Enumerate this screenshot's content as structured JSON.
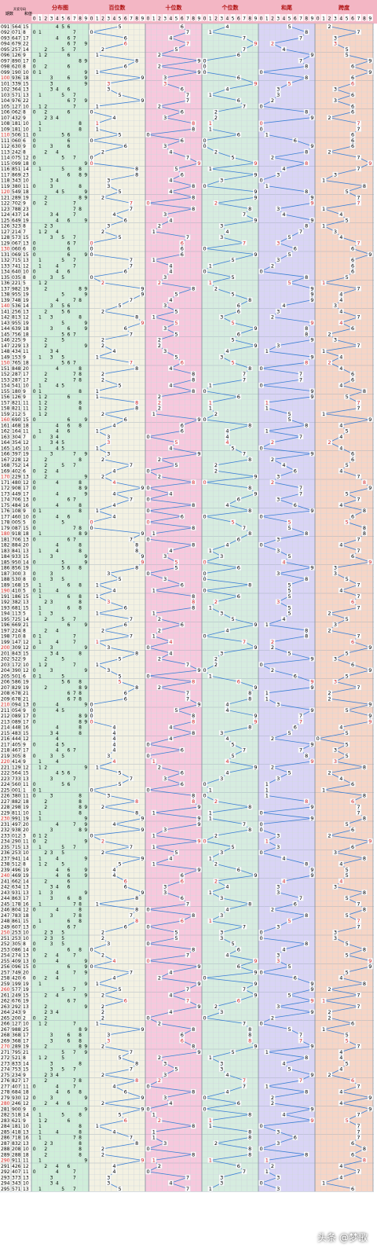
{
  "chart_data": {
    "type": "table",
    "columns": {
      "period": "期数",
      "draw": "开奖号码",
      "sum": "和值",
      "distribution": "分布图",
      "hundreds": "百位数",
      "tens": "十位数",
      "units": "个位数",
      "sum_tail": "和尾",
      "span": "跨度"
    },
    "digit_header": [
      "0",
      "1",
      "2",
      "3",
      "4",
      "5",
      "6",
      "7",
      "8",
      "9"
    ],
    "span_header": [
      "0",
      "1",
      "2",
      "3",
      "4",
      "5",
      "6",
      "7",
      "8",
      "9"
    ],
    "colors": {
      "distribution": "#cfeed9",
      "hundreds": "#f3f1e2",
      "tens": "#f7c8dd",
      "units": "#d6ecdf",
      "sum_tail": "#d9d4f5",
      "span": "#f6d5c6",
      "header": "#f3b6c4",
      "line": "#3a7fd5",
      "accent": "#d62020"
    },
    "rows": [
      {
        "period": "091",
        "h": 5,
        "t": 6,
        "u": 4
      },
      {
        "period": "092",
        "h": 0,
        "t": 7,
        "u": 1
      },
      {
        "period": "093",
        "h": 6,
        "t": 4,
        "u": 7
      },
      {
        "period": "094",
        "h": 6,
        "t": 7,
        "u": 9
      },
      {
        "period": "095",
        "h": 2,
        "t": 5,
        "u": 7
      },
      {
        "period": "096",
        "h": 1,
        "t": 2,
        "u": 6
      },
      {
        "period": "097",
        "h": 8,
        "t": 9,
        "u": 0
      },
      {
        "period": "098",
        "h": 6,
        "t": 2,
        "u": 0
      },
      {
        "period": "099",
        "h": 1,
        "t": 9,
        "u": 0
      },
      {
        "period": "100",
        "h": 9,
        "t": 3,
        "u": 6
      },
      {
        "period": "101",
        "h": 3,
        "t": 3,
        "u": 9
      },
      {
        "period": "102",
        "h": 3,
        "t": 6,
        "u": 4
      },
      {
        "period": "103",
        "h": 5,
        "t": 7,
        "u": 1
      },
      {
        "period": "104",
        "h": 9,
        "t": 7,
        "u": 6
      },
      {
        "period": "105",
        "h": 1,
        "t": 2,
        "u": 7
      },
      {
        "period": "106",
        "h": 0,
        "t": 6,
        "u": 2
      },
      {
        "period": "107",
        "h": 4,
        "t": 3,
        "u": 2
      },
      {
        "period": "108",
        "h": 1,
        "t": 8,
        "u": 1
      },
      {
        "period": "109",
        "h": 1,
        "t": 8,
        "u": 1
      },
      {
        "period": "110",
        "h": 5,
        "t": 0,
        "u": 6
      },
      {
        "period": "111",
        "h": 0,
        "t": 6,
        "u": 0
      },
      {
        "period": "112",
        "h": 6,
        "t": 3,
        "u": 0
      },
      {
        "period": "113",
        "h": 2,
        "t": 4,
        "u": 2
      },
      {
        "period": "114",
        "h": 0,
        "t": 7,
        "u": 5
      },
      {
        "period": "115",
        "h": 0,
        "t": 9,
        "u": 9
      },
      {
        "period": "116",
        "h": 8,
        "t": 5,
        "u": 1
      },
      {
        "period": "117",
        "h": 8,
        "t": 6,
        "u": 9
      },
      {
        "period": "118",
        "h": 3,
        "t": 4,
        "u": 3
      },
      {
        "period": "119",
        "h": 3,
        "t": 8,
        "u": 0
      },
      {
        "period": "120",
        "h": 5,
        "t": 4,
        "u": 9
      },
      {
        "period": "121",
        "h": 2,
        "t": 8,
        "u": 9
      },
      {
        "period": "122",
        "h": 7,
        "t": 0,
        "u": 2
      },
      {
        "period": "123",
        "h": 7,
        "t": 8,
        "u": 8
      },
      {
        "period": "124",
        "h": 4,
        "t": 3,
        "u": 7
      },
      {
        "period": "125",
        "h": 6,
        "t": 4,
        "u": 9
      },
      {
        "period": "126",
        "h": 3,
        "t": 2,
        "u": 3
      },
      {
        "period": "127",
        "h": 2,
        "t": 1,
        "u": 4
      },
      {
        "period": "128",
        "h": 5,
        "t": 7,
        "u": 3
      },
      {
        "period": "129",
        "h": 0,
        "t": 6,
        "u": 7
      },
      {
        "period": "130",
        "h": 0,
        "t": 6,
        "u": 0
      },
      {
        "period": "131",
        "h": 0,
        "t": 6,
        "u": 9
      },
      {
        "period": "132",
        "h": 7,
        "t": 1,
        "u": 5
      },
      {
        "period": "133",
        "h": 7,
        "t": 4,
        "u": 1
      },
      {
        "period": "134",
        "h": 6,
        "t": 4,
        "u": 0
      },
      {
        "period": "135",
        "h": 0,
        "t": 3,
        "u": 5
      },
      {
        "period": "136",
        "h": 2,
        "t": 2,
        "u": 1
      },
      {
        "period": "137",
        "h": 9,
        "t": 8,
        "u": 2
      },
      {
        "period": "138",
        "h": 9,
        "t": 5,
        "u": 5
      },
      {
        "period": "139",
        "h": 7,
        "t": 4,
        "u": 8
      },
      {
        "period": "140",
        "h": 5,
        "t": 3,
        "u": 6
      },
      {
        "period": "141",
        "h": 2,
        "t": 5,
        "u": 6
      },
      {
        "period": "142",
        "h": 8,
        "t": 1,
        "u": 3
      },
      {
        "period": "143",
        "h": 9,
        "t": 5,
        "u": 5
      },
      {
        "period": "144",
        "h": 6,
        "t": 3,
        "u": 9
      },
      {
        "period": "145",
        "h": 7,
        "t": 5,
        "u": 6
      },
      {
        "period": "146",
        "h": 2,
        "t": 2,
        "u": 5
      },
      {
        "period": "147",
        "h": 2,
        "t": 2,
        "u": 9
      },
      {
        "period": "148",
        "h": 4,
        "t": 3,
        "u": 4
      },
      {
        "period": "149",
        "h": 1,
        "t": 5,
        "u": 3
      },
      {
        "period": "150",
        "h": 7,
        "t": 6,
        "u": 5
      },
      {
        "period": "151",
        "h": 8,
        "t": 4,
        "u": 8
      },
      {
        "period": "152",
        "h": 2,
        "t": 8,
        "u": 7
      },
      {
        "period": "153",
        "h": 2,
        "t": 8,
        "u": 7
      },
      {
        "period": "154",
        "h": 5,
        "t": 4,
        "u": 1
      },
      {
        "period": "155",
        "h": 1,
        "t": 8,
        "u": 0
      },
      {
        "period": "156",
        "h": 1,
        "t": 2,
        "u": 6
      },
      {
        "period": "157",
        "h": 8,
        "t": 2,
        "u": 1
      },
      {
        "period": "158",
        "h": 8,
        "t": 2,
        "u": 1
      },
      {
        "period": "159",
        "h": 2,
        "t": 1,
        "u": 2
      },
      {
        "period": "160",
        "h": 6,
        "t": 9,
        "u": 0
      },
      {
        "period": "161",
        "h": 4,
        "t": 6,
        "u": 8
      },
      {
        "period": "162",
        "h": 1,
        "t": 6,
        "u": 4
      },
      {
        "period": "163",
        "h": 3,
        "t": 0,
        "u": 4
      },
      {
        "period": "164",
        "h": 3,
        "t": 5,
        "u": 4
      },
      {
        "period": "165",
        "h": 1,
        "t": 4,
        "u": 5
      },
      {
        "period": "166",
        "h": 3,
        "t": 9,
        "u": 7
      },
      {
        "period": "167",
        "h": 2,
        "t": 2,
        "u": 8
      },
      {
        "period": "168",
        "h": 7,
        "t": 5,
        "u": 2
      },
      {
        "period": "169",
        "h": 4,
        "t": 0,
        "u": 2
      },
      {
        "period": "170",
        "h": 2,
        "t": 2,
        "u": 9
      },
      {
        "period": "171",
        "h": 4,
        "t": 8,
        "u": 0
      },
      {
        "period": "172",
        "h": 9,
        "t": 0,
        "u": 8
      },
      {
        "period": "173",
        "h": 4,
        "t": 4,
        "u": 9
      },
      {
        "period": "174",
        "h": 7,
        "t": 0,
        "u": 6
      },
      {
        "period": "175",
        "h": 4,
        "t": 8,
        "u": 4
      },
      {
        "period": "176",
        "h": 1,
        "t": 0,
        "u": 8
      },
      {
        "period": "177",
        "h": 4,
        "t": 6,
        "u": 0
      },
      {
        "period": "178",
        "h": 0,
        "t": 0,
        "u": 5
      },
      {
        "period": "179",
        "h": 0,
        "t": 8,
        "u": 7
      },
      {
        "period": "180",
        "h": 9,
        "t": 1,
        "u": 8
      },
      {
        "period": "181",
        "h": 7,
        "t": 0,
        "u": 6
      },
      {
        "period": "182",
        "h": 8,
        "t": 8,
        "u": 4
      },
      {
        "period": "183",
        "h": 8,
        "t": 4,
        "u": 1
      },
      {
        "period": "184",
        "h": 9,
        "t": 3,
        "u": 3
      },
      {
        "period": "185",
        "h": 9,
        "t": 5,
        "u": 0
      },
      {
        "period": "186",
        "h": 8,
        "t": 5,
        "u": 6
      },
      {
        "period": "187",
        "h": 3,
        "t": 0,
        "u": 0
      },
      {
        "period": "188",
        "h": 5,
        "t": 3,
        "u": 0
      },
      {
        "period": "189",
        "h": 1,
        "t": 6,
        "u": 8
      },
      {
        "period": "190",
        "h": 4,
        "t": 1,
        "u": 0
      },
      {
        "period": "191",
        "h": 1,
        "t": 8,
        "u": 6
      },
      {
        "period": "192",
        "h": 3,
        "t": 8,
        "u": 2
      },
      {
        "period": "193",
        "h": 6,
        "t": 8,
        "u": 1
      },
      {
        "period": "194",
        "h": 1,
        "t": 1,
        "u": 3
      },
      {
        "period": "195",
        "h": 7,
        "t": 2,
        "u": 5
      },
      {
        "period": "196",
        "h": 6,
        "t": 6,
        "u": 9
      },
      {
        "period": "197",
        "h": 2,
        "t": 2,
        "u": 4
      },
      {
        "period": "198",
        "h": 7,
        "t": 1,
        "u": 0
      },
      {
        "period": "199",
        "h": 1,
        "t": 4,
        "u": 7
      },
      {
        "period": "200",
        "h": 3,
        "t": 0,
        "u": 9
      },
      {
        "period": "201",
        "h": 8,
        "t": 4,
        "u": 3
      },
      {
        "period": "202",
        "h": 5,
        "t": 2,
        "u": 2
      },
      {
        "period": "203",
        "h": 1,
        "t": 7,
        "u": 2
      },
      {
        "period": "204",
        "h": 3,
        "t": 9,
        "u": 0
      },
      {
        "period": "205",
        "h": 5,
        "t": 0,
        "u": 1
      },
      {
        "period": "206",
        "h": 5,
        "t": 8,
        "u": 6
      },
      {
        "period": "207",
        "h": 8,
        "t": 2,
        "u": 9
      },
      {
        "period": "208",
        "h": 6,
        "t": 7,
        "u": 8
      },
      {
        "period": "209",
        "h": 6,
        "t": 7,
        "u": 8
      },
      {
        "period": "210",
        "h": 0,
        "t": 9,
        "u": 4
      },
      {
        "period": "211",
        "h": 0,
        "t": 5,
        "u": 4
      },
      {
        "period": "212",
        "h": 0,
        "t": 8,
        "u": 9
      },
      {
        "period": "213",
        "h": 0,
        "t": 8,
        "u": 9
      },
      {
        "period": "214",
        "h": 4,
        "t": 4,
        "u": 8
      },
      {
        "period": "215",
        "h": 4,
        "t": 8,
        "u": 3
      },
      {
        "period": "216",
        "h": 4,
        "t": 4,
        "u": 4
      },
      {
        "period": "217",
        "h": 4,
        "t": 0,
        "u": 5
      },
      {
        "period": "218",
        "h": 4,
        "t": 6,
        "u": 7
      },
      {
        "period": "219",
        "h": 3,
        "t": 0,
        "u": 5
      },
      {
        "period": "220",
        "h": 4,
        "t": 1,
        "u": 4
      },
      {
        "period": "221",
        "h": 1,
        "t": 2,
        "u": 9
      },
      {
        "period": "222",
        "h": 5,
        "t": 6,
        "u": 4
      },
      {
        "period": "223",
        "h": 7,
        "t": 3,
        "u": 3
      },
      {
        "period": "224",
        "h": 5,
        "t": 6,
        "u": 0
      },
      {
        "period": "225",
        "h": 0,
        "t": 0,
        "u": 1
      },
      {
        "period": "226",
        "h": 3,
        "t": 8,
        "u": 0
      },
      {
        "period": "227",
        "h": 8,
        "t": 8,
        "u": 2
      },
      {
        "period": "228",
        "h": 2,
        "t": 9,
        "u": 8
      },
      {
        "period": "229",
        "h": 8,
        "t": 1,
        "u": 1
      },
      {
        "period": "230",
        "h": 9,
        "t": 9,
        "u": 1
      },
      {
        "period": "231",
        "h": 4,
        "t": 9,
        "u": 7
      },
      {
        "period": "232",
        "h": 9,
        "t": 3,
        "u": 8
      },
      {
        "period": "233",
        "h": 0,
        "t": 1,
        "u": 2
      },
      {
        "period": "234",
        "h": 2,
        "t": 9,
        "u": 0
      },
      {
        "period": "235",
        "h": 7,
        "t": 1,
        "u": 5
      },
      {
        "period": "236",
        "h": 2,
        "t": 5,
        "u": 3
      },
      {
        "period": "237",
        "h": 9,
        "t": 4,
        "u": 1
      },
      {
        "period": "238",
        "h": 5,
        "t": 1,
        "u": 2
      },
      {
        "period": "239",
        "h": 4,
        "t": 9,
        "u": 6
      },
      {
        "period": "240",
        "h": 4,
        "t": 6,
        "u": 9
      },
      {
        "period": "241",
        "h": 6,
        "t": 6,
        "u": 2
      },
      {
        "period": "242",
        "h": 6,
        "t": 3,
        "u": 4
      },
      {
        "period": "243",
        "h": 9,
        "t": 3,
        "u": 1
      },
      {
        "period": "244",
        "h": 8,
        "t": 6,
        "u": 3
      },
      {
        "period": "245",
        "h": 1,
        "t": 7,
        "u": 8
      },
      {
        "period": "246",
        "h": 8,
        "t": 0,
        "u": 4
      },
      {
        "period": "247",
        "h": 7,
        "t": 8,
        "u": 3
      },
      {
        "period": "248",
        "h": 8,
        "t": 6,
        "u": 1
      },
      {
        "period": "249",
        "h": 6,
        "t": 0,
        "u": 7
      },
      {
        "period": "250",
        "h": 2,
        "t": 5,
        "u": 3
      },
      {
        "period": "251",
        "h": 2,
        "t": 5,
        "u": 3
      },
      {
        "period": "252",
        "h": 3,
        "t": 0,
        "u": 5
      },
      {
        "period": "253",
        "h": 0,
        "t": 8,
        "u": 6
      },
      {
        "period": "254",
        "h": 2,
        "t": 7,
        "u": 4
      },
      {
        "period": "255",
        "h": 4,
        "t": 0,
        "u": 9
      },
      {
        "period": "256",
        "h": 0,
        "t": 9,
        "u": 6
      },
      {
        "period": "257",
        "h": 7,
        "t": 4,
        "u": 9
      },
      {
        "period": "258",
        "h": 4,
        "t": 2,
        "u": 0
      },
      {
        "period": "259",
        "h": 1,
        "t": 9,
        "u": 9
      },
      {
        "period": "260",
        "h": 5,
        "t": 7,
        "u": 7
      },
      {
        "period": "261",
        "h": 2,
        "t": 4,
        "u": 9
      },
      {
        "period": "262",
        "h": 6,
        "t": 7,
        "u": 6
      },
      {
        "period": "263",
        "h": 2,
        "t": 9,
        "u": 2
      },
      {
        "period": "264",
        "h": 2,
        "t": 4,
        "u": 3
      },
      {
        "period": "265",
        "h": 2,
        "t": 0,
        "u": 0
      },
      {
        "period": "266",
        "h": 1,
        "t": 2,
        "u": 7
      },
      {
        "period": "267",
        "h": 9,
        "t": 8,
        "u": 8
      },
      {
        "period": "268",
        "h": 3,
        "t": 6,
        "u": 8
      },
      {
        "period": "269",
        "h": 3,
        "t": 6,
        "u": 8
      },
      {
        "period": "270",
        "h": 2,
        "t": 8,
        "u": 9
      },
      {
        "period": "271",
        "h": 7,
        "t": 9,
        "u": 5
      },
      {
        "period": "272",
        "h": 5,
        "t": 2,
        "u": 1
      },
      {
        "period": "273",
        "h": 8,
        "t": 3,
        "u": 3
      },
      {
        "period": "274",
        "h": 7,
        "t": 5,
        "u": 3
      },
      {
        "period": "275",
        "h": 2,
        "t": 3,
        "u": 4
      },
      {
        "period": "276",
        "h": 8,
        "t": 2,
        "u": 7
      },
      {
        "period": "277",
        "h": 4,
        "t": 0,
        "u": 7
      },
      {
        "period": "278",
        "h": 6,
        "t": 8,
        "u": 4
      },
      {
        "period": "279",
        "h": 9,
        "t": 3,
        "u": 0
      },
      {
        "period": "280",
        "h": 2,
        "t": 4,
        "u": 6
      },
      {
        "period": "281",
        "h": 9,
        "t": 0,
        "u": 0
      },
      {
        "period": "282",
        "h": 5,
        "t": 1,
        "u": 8
      },
      {
        "period": "283",
        "h": 6,
        "t": 2,
        "u": 1
      },
      {
        "period": "284",
        "h": 1,
        "t": 8,
        "u": 1
      },
      {
        "period": "285",
        "h": 4,
        "t": 1,
        "u": 8
      },
      {
        "period": "286",
        "h": 7,
        "t": 1,
        "u": 8
      },
      {
        "period": "287",
        "h": 8,
        "t": 3,
        "u": 2
      },
      {
        "period": "288",
        "h": 2,
        "t": 0,
        "u": 8
      },
      {
        "period": "289",
        "h": 2,
        "t": 8,
        "u": 8
      },
      {
        "period": "290",
        "h": 9,
        "t": 1,
        "u": 1
      },
      {
        "period": "291",
        "h": 4,
        "t": 2,
        "u": 6
      },
      {
        "period": "292",
        "h": 4,
        "t": 0,
        "u": 7
      },
      {
        "period": "293",
        "h": 3,
        "t": 7,
        "u": 3
      },
      {
        "period": "294",
        "h": 3,
        "t": 4,
        "u": 3
      },
      {
        "period": "295",
        "h": 5,
        "t": 7,
        "u": 1
      }
    ]
  },
  "watermark": "头条 @梦歌"
}
